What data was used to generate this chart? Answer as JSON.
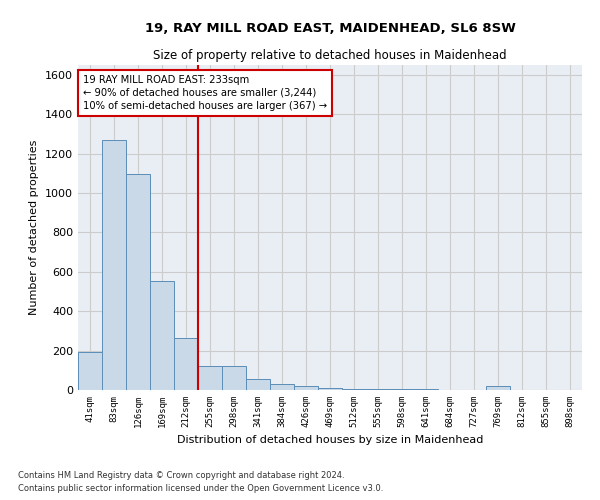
{
  "title": "19, RAY MILL ROAD EAST, MAIDENHEAD, SL6 8SW",
  "subtitle": "Size of property relative to detached houses in Maidenhead",
  "xlabel": "Distribution of detached houses by size in Maidenhead",
  "ylabel": "Number of detached properties",
  "categories": [
    "41sqm",
    "83sqm",
    "126sqm",
    "169sqm",
    "212sqm",
    "255sqm",
    "298sqm",
    "341sqm",
    "384sqm",
    "426sqm",
    "469sqm",
    "512sqm",
    "555sqm",
    "598sqm",
    "641sqm",
    "684sqm",
    "727sqm",
    "769sqm",
    "812sqm",
    "855sqm",
    "898sqm"
  ],
  "values": [
    195,
    1270,
    1095,
    555,
    265,
    120,
    120,
    55,
    30,
    20,
    10,
    5,
    5,
    5,
    5,
    0,
    0,
    20,
    0,
    0,
    0
  ],
  "bar_color": "#c9d9e8",
  "bar_edge_color": "#5b8db8",
  "ylim": [
    0,
    1650
  ],
  "yticks": [
    0,
    200,
    400,
    600,
    800,
    1000,
    1200,
    1400,
    1600
  ],
  "annotation_text": "19 RAY MILL ROAD EAST: 233sqm\n← 90% of detached houses are smaller (3,244)\n10% of semi-detached houses are larger (367) →",
  "annotation_box_color": "#ffffff",
  "annotation_box_edge": "#cc0000",
  "footnote1": "Contains HM Land Registry data © Crown copyright and database right 2024.",
  "footnote2": "Contains public sector information licensed under the Open Government Licence v3.0.",
  "grid_color": "#cccccc",
  "background_color": "#e8eef4"
}
